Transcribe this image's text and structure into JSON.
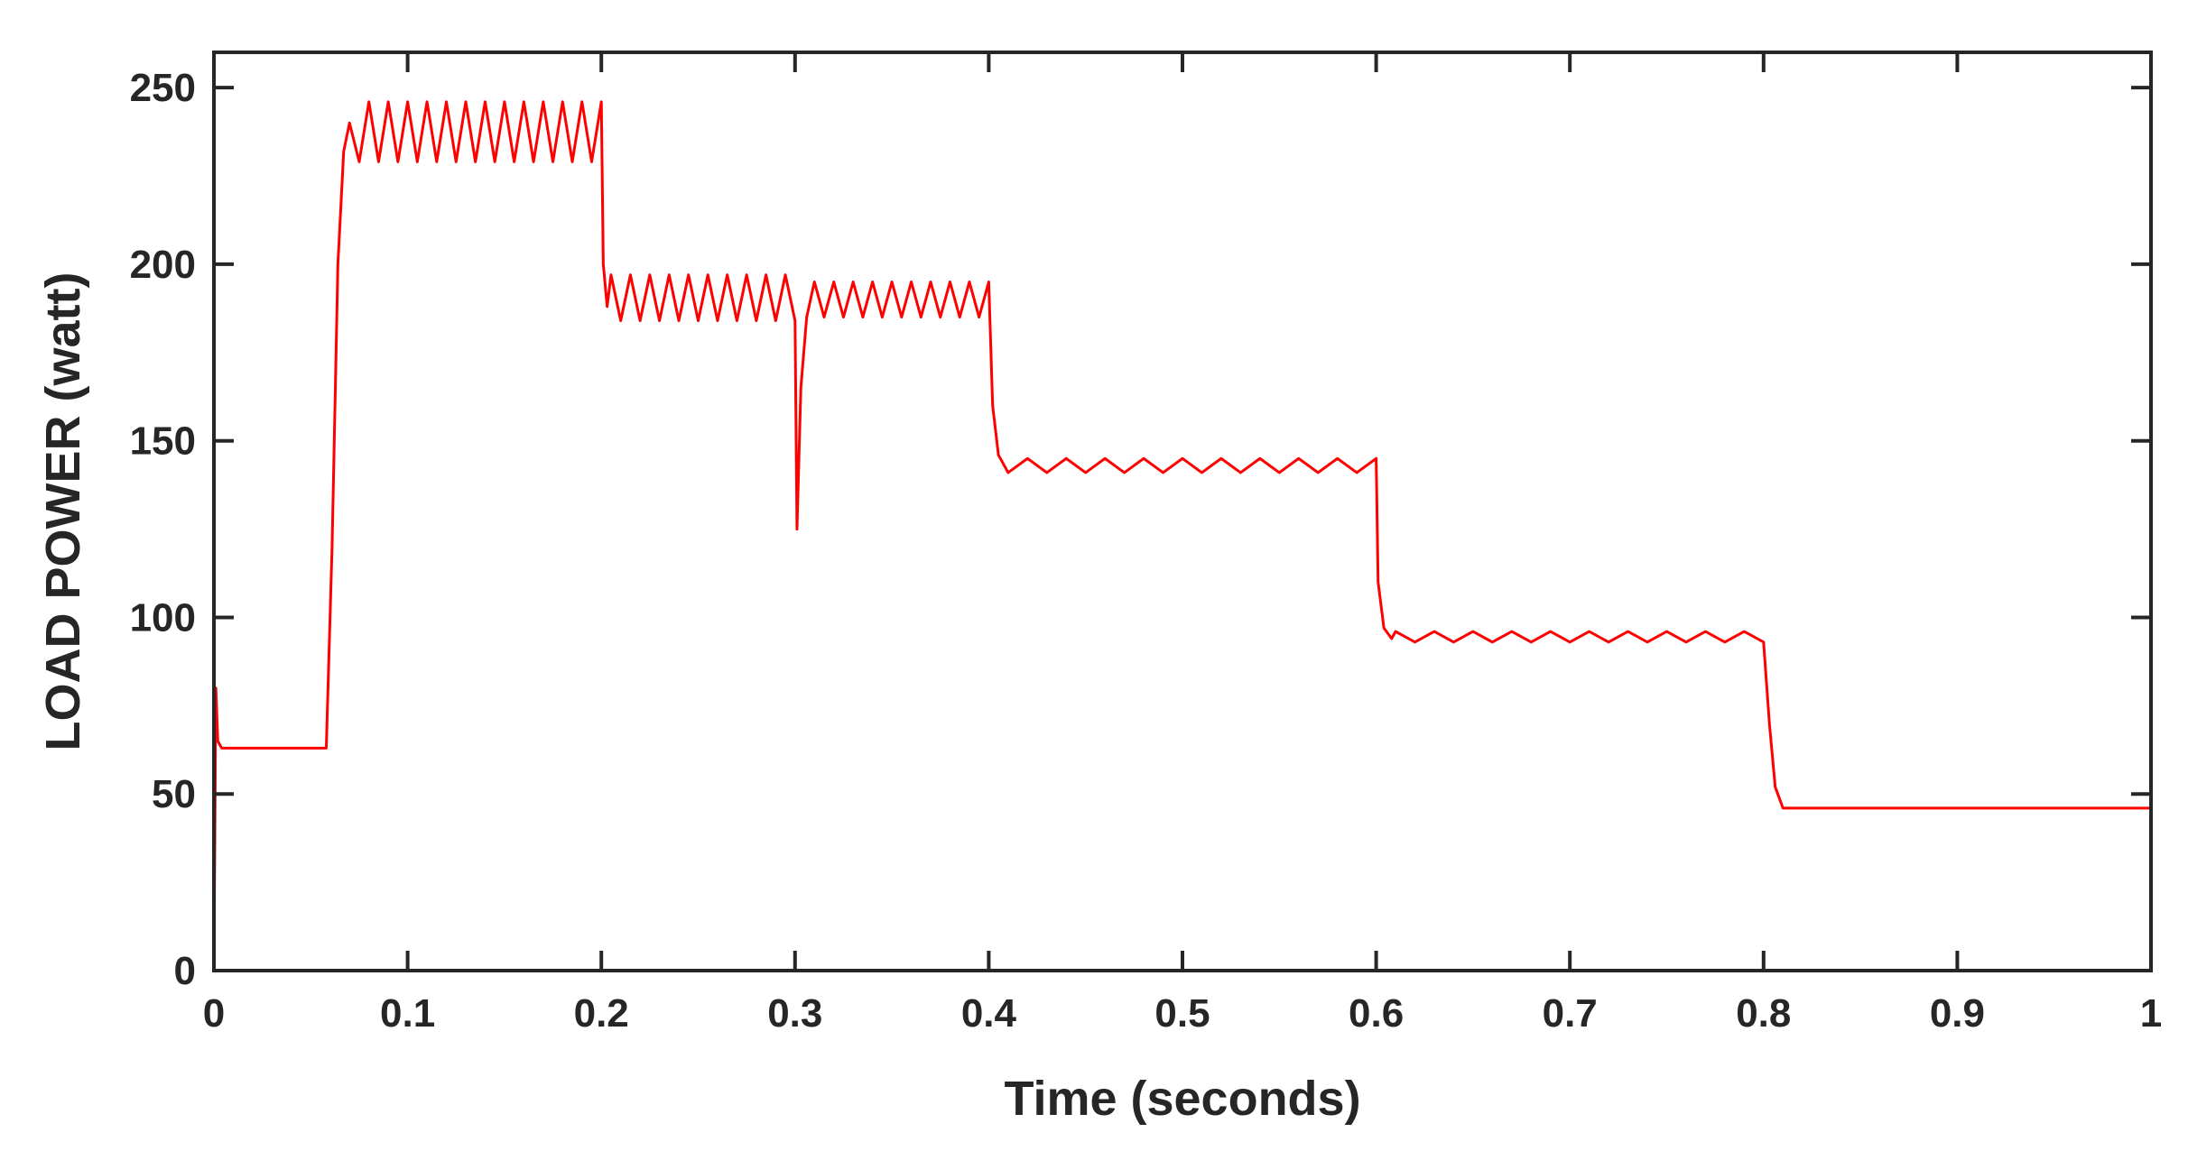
{
  "chart_data": {
    "type": "line",
    "xlabel": "Time (seconds)",
    "ylabel": "LOAD POWER (watt)",
    "color": "#ff0000",
    "x": [
      0,
      0.001,
      0.002,
      0.004,
      0.058,
      0.061,
      0.064,
      0.067,
      0.07,
      0.075,
      0.08,
      0.085,
      0.09,
      0.095,
      0.1,
      0.105,
      0.11,
      0.115,
      0.12,
      0.125,
      0.13,
      0.135,
      0.14,
      0.145,
      0.15,
      0.155,
      0.16,
      0.165,
      0.17,
      0.175,
      0.18,
      0.185,
      0.19,
      0.195,
      0.2,
      0.201,
      0.203,
      0.205,
      0.21,
      0.215,
      0.22,
      0.225,
      0.23,
      0.235,
      0.24,
      0.245,
      0.25,
      0.255,
      0.26,
      0.265,
      0.27,
      0.275,
      0.28,
      0.285,
      0.29,
      0.295,
      0.3,
      0.301,
      0.303,
      0.306,
      0.31,
      0.315,
      0.32,
      0.325,
      0.33,
      0.335,
      0.34,
      0.345,
      0.35,
      0.355,
      0.36,
      0.365,
      0.37,
      0.375,
      0.38,
      0.385,
      0.39,
      0.395,
      0.4,
      0.402,
      0.405,
      0.41,
      0.42,
      0.43,
      0.44,
      0.45,
      0.46,
      0.47,
      0.48,
      0.49,
      0.5,
      0.51,
      0.52,
      0.53,
      0.54,
      0.55,
      0.56,
      0.57,
      0.58,
      0.59,
      0.6,
      0.601,
      0.604,
      0.608,
      0.61,
      0.62,
      0.63,
      0.64,
      0.65,
      0.66,
      0.67,
      0.68,
      0.69,
      0.7,
      0.71,
      0.72,
      0.73,
      0.74,
      0.75,
      0.76,
      0.77,
      0.78,
      0.79,
      0.8,
      0.803,
      0.806,
      0.81,
      1
    ],
    "values": [
      0,
      80,
      65,
      63,
      63,
      120,
      200,
      232,
      240,
      229,
      246,
      229,
      246,
      229,
      246,
      229,
      246,
      229,
      246,
      229,
      246,
      229,
      246,
      229,
      246,
      229,
      246,
      229,
      246,
      229,
      246,
      229,
      246,
      229,
      246,
      200,
      188,
      197,
      184,
      197,
      184,
      197,
      184,
      197,
      184,
      197,
      184,
      197,
      184,
      197,
      184,
      197,
      184,
      197,
      184,
      197,
      184,
      125,
      165,
      185,
      195,
      185,
      195,
      185,
      195,
      185,
      195,
      185,
      195,
      185,
      195,
      185,
      195,
      185,
      195,
      185,
      195,
      185,
      195,
      160,
      146,
      141,
      145,
      141,
      145,
      141,
      145,
      141,
      145,
      141,
      145,
      141,
      145,
      141,
      145,
      141,
      145,
      141,
      145,
      141,
      145,
      110,
      97,
      94,
      96,
      93,
      96,
      93,
      96,
      93,
      96,
      93,
      96,
      93,
      96,
      93,
      96,
      93,
      96,
      93,
      96,
      93,
      96,
      93,
      70,
      52,
      46,
      46
    ],
    "xlim": [
      0,
      1
    ],
    "xticks": [
      0,
      0.1,
      0.2,
      0.3,
      0.4,
      0.5,
      0.6,
      0.7,
      0.8,
      0.9,
      1
    ],
    "ylim": [
      0,
      260
    ],
    "yticks": [
      0,
      50,
      100,
      150,
      200,
      250
    ],
    "grid": false
  }
}
